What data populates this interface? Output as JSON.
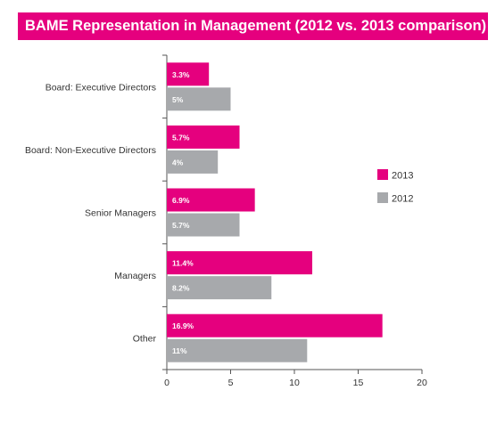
{
  "chart_data": {
    "type": "bar",
    "orientation": "horizontal",
    "title": "BAME Representation in Management (2012 vs. 2013 comparison)",
    "categories": [
      "Board: Executive Directors",
      "Board: Non-Executive Directors",
      "Senior Managers",
      "Managers",
      "Other"
    ],
    "series": [
      {
        "name": "2013",
        "values": [
          3.3,
          5.7,
          6.9,
          11.4,
          16.9
        ],
        "labels": [
          "3.3%",
          "5.7%",
          "6.9%",
          "11.4%",
          "16.9%"
        ],
        "color": "#e5007e"
      },
      {
        "name": "2012",
        "values": [
          5,
          4,
          5.7,
          8.2,
          11
        ],
        "labels": [
          "5%",
          "4%",
          "5.7%",
          "8.2%",
          "11%"
        ],
        "color": "#a7a9ac"
      }
    ],
    "xlim": [
      0,
      20
    ],
    "xticks": [
      "0",
      "5",
      "10",
      "15",
      "20"
    ],
    "xlabel": "",
    "ylabel": "",
    "grid": false,
    "legend_position": "right"
  }
}
